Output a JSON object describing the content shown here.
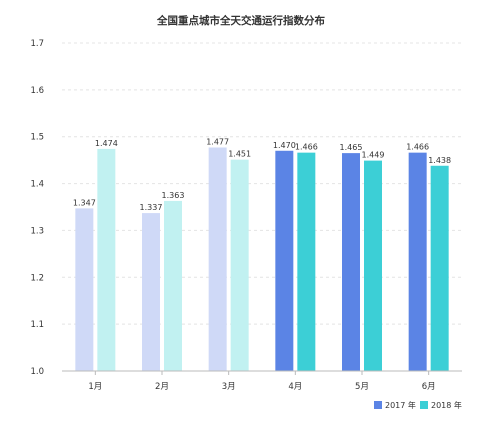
{
  "chart_data": {
    "type": "bar",
    "title": "全国重点城市全天交通运行指数分布",
    "categories": [
      "1月",
      "2月",
      "3月",
      "4月",
      "5月",
      "6月"
    ],
    "series": [
      {
        "name": "2017 年",
        "values": [
          1.347,
          1.337,
          1.477,
          1.47,
          1.465,
          1.466
        ]
      },
      {
        "name": "2018 年",
        "values": [
          1.474,
          1.363,
          1.451,
          1.466,
          1.449,
          1.438
        ]
      }
    ],
    "value_labels": [
      [
        "1.347",
        "1.337",
        "1.477",
        "1.470",
        "1.465",
        "1.466"
      ],
      [
        "1.474",
        "1.363",
        "1.451",
        "1.466",
        "1.449",
        "1.438"
      ]
    ],
    "ylim": [
      1.0,
      1.7
    ],
    "yticks": [
      "1.0",
      "1.1",
      "1.2",
      "1.3",
      "1.4",
      "1.5",
      "1.6",
      "1.7"
    ],
    "grid": true,
    "legend_position": "bottom-right",
    "colors": {
      "light": [
        "#cfd9f7",
        "#c1f1f1"
      ],
      "dark": [
        "#5b84e5",
        "#3ccfd6"
      ],
      "grid": "#e4e4e4",
      "axis": "#bbbbbb"
    }
  }
}
